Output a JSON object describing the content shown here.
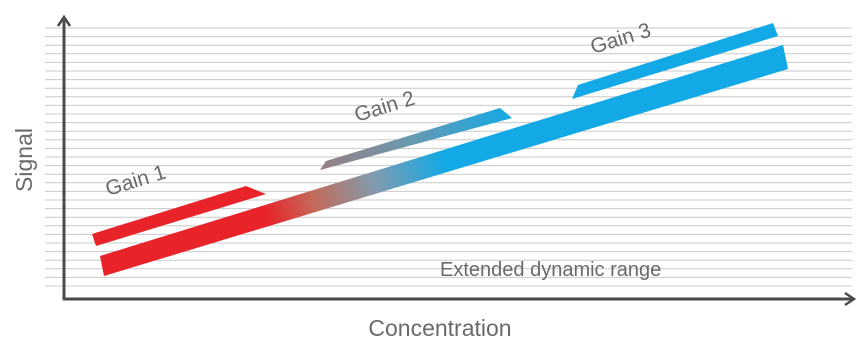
{
  "axes": {
    "x_label": "Concentration",
    "y_label": "Signal"
  },
  "labels": {
    "gain_1": "Gain 1",
    "gain_2": "Gain 2",
    "gain_3": "Gain 3",
    "extended": "Extended dynamic range"
  },
  "colors": {
    "gain_low": "#e8232a",
    "gain_mid": "#8f7f86",
    "gain_high": "#12a9e6",
    "axis": "#4a4a4a",
    "gridline": "#c9c9c9",
    "text": "#6a6a6a"
  }
}
